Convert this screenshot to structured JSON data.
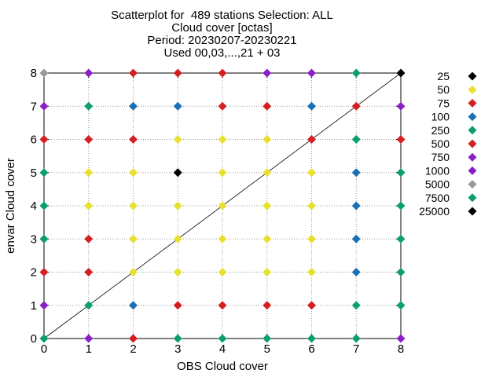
{
  "chart_data": {
    "type": "scatter",
    "title_lines": [
      "Scatterplot for  489 stations Selection: ALL",
      "Cloud cover [octas]",
      "Period: 20230207-20230221",
      "Used 00,03,...,21 + 03"
    ],
    "xlabel": "OBS Cloud cover",
    "ylabel": "envar Cloud cover",
    "xlim": [
      0,
      8
    ],
    "ylim": [
      0,
      8
    ],
    "xticks": [
      "0",
      "1",
      "2",
      "3",
      "4",
      "5",
      "6",
      "7",
      "8"
    ],
    "yticks": [
      "0",
      "1",
      "2",
      "3",
      "4",
      "5",
      "6",
      "7",
      "8"
    ],
    "grid": true,
    "diagonal_line": true,
    "legend_placement": "right",
    "legend": [
      {
        "label": "25",
        "color": "#000000"
      },
      {
        "label": "50",
        "color": "#e8e030"
      },
      {
        "label": "75",
        "color": "#d42020"
      },
      {
        "label": "100",
        "color": "#1a6fb5"
      },
      {
        "label": "250",
        "color": "#0a9e72"
      },
      {
        "label": "500",
        "color": "#d42020"
      },
      {
        "label": "750",
        "color": "#8a1fc8"
      },
      {
        "label": "1000",
        "color": "#8a1fc8"
      },
      {
        "label": "5000",
        "color": "#999999"
      },
      {
        "label": "7500",
        "color": "#0a9e72"
      },
      {
        "label": "25000",
        "color": "#000000"
      }
    ],
    "points": [
      {
        "x": 0,
        "y": 0,
        "color": "#0a9e72"
      },
      {
        "x": 1,
        "y": 0,
        "color": "#8a1fc8"
      },
      {
        "x": 2,
        "y": 0,
        "color": "#d42020"
      },
      {
        "x": 3,
        "y": 0,
        "color": "#0a9e72"
      },
      {
        "x": 4,
        "y": 0,
        "color": "#0a9e72"
      },
      {
        "x": 5,
        "y": 0,
        "color": "#0a9e72"
      },
      {
        "x": 6,
        "y": 0,
        "color": "#0a9e72"
      },
      {
        "x": 7,
        "y": 0,
        "color": "#0a9e72"
      },
      {
        "x": 8,
        "y": 0,
        "color": "#8a1fc8"
      },
      {
        "x": 0,
        "y": 1,
        "color": "#8a1fc8"
      },
      {
        "x": 1,
        "y": 1,
        "color": "#0a9e72"
      },
      {
        "x": 2,
        "y": 1,
        "color": "#1a6fb5"
      },
      {
        "x": 3,
        "y": 1,
        "color": "#d42020"
      },
      {
        "x": 4,
        "y": 1,
        "color": "#d42020"
      },
      {
        "x": 5,
        "y": 1,
        "color": "#d42020"
      },
      {
        "x": 6,
        "y": 1,
        "color": "#d42020"
      },
      {
        "x": 7,
        "y": 1,
        "color": "#0a9e72"
      },
      {
        "x": 8,
        "y": 1,
        "color": "#0a9e72"
      },
      {
        "x": 0,
        "y": 2,
        "color": "#d42020"
      },
      {
        "x": 1,
        "y": 2,
        "color": "#d42020"
      },
      {
        "x": 2,
        "y": 2,
        "color": "#e8e030"
      },
      {
        "x": 3,
        "y": 2,
        "color": "#e8e030"
      },
      {
        "x": 4,
        "y": 2,
        "color": "#e8e030"
      },
      {
        "x": 5,
        "y": 2,
        "color": "#e8e030"
      },
      {
        "x": 6,
        "y": 2,
        "color": "#e8e030"
      },
      {
        "x": 7,
        "y": 2,
        "color": "#1a6fb5"
      },
      {
        "x": 8,
        "y": 2,
        "color": "#0a9e72"
      },
      {
        "x": 0,
        "y": 3,
        "color": "#0a9e72"
      },
      {
        "x": 1,
        "y": 3,
        "color": "#d42020"
      },
      {
        "x": 2,
        "y": 3,
        "color": "#e8e030"
      },
      {
        "x": 3,
        "y": 3,
        "color": "#e8e030"
      },
      {
        "x": 4,
        "y": 3,
        "color": "#e8e030"
      },
      {
        "x": 5,
        "y": 3,
        "color": "#e8e030"
      },
      {
        "x": 6,
        "y": 3,
        "color": "#e8e030"
      },
      {
        "x": 7,
        "y": 3,
        "color": "#1a6fb5"
      },
      {
        "x": 8,
        "y": 3,
        "color": "#0a9e72"
      },
      {
        "x": 0,
        "y": 4,
        "color": "#0a9e72"
      },
      {
        "x": 1,
        "y": 4,
        "color": "#e8e030"
      },
      {
        "x": 2,
        "y": 4,
        "color": "#e8e030"
      },
      {
        "x": 3,
        "y": 4,
        "color": "#e8e030"
      },
      {
        "x": 4,
        "y": 4,
        "color": "#e8e030"
      },
      {
        "x": 5,
        "y": 4,
        "color": "#e8e030"
      },
      {
        "x": 6,
        "y": 4,
        "color": "#e8e030"
      },
      {
        "x": 7,
        "y": 4,
        "color": "#1a6fb5"
      },
      {
        "x": 8,
        "y": 4,
        "color": "#0a9e72"
      },
      {
        "x": 0,
        "y": 5,
        "color": "#0a9e72"
      },
      {
        "x": 1,
        "y": 5,
        "color": "#e8e030"
      },
      {
        "x": 2,
        "y": 5,
        "color": "#e8e030"
      },
      {
        "x": 3,
        "y": 5,
        "color": "#000000"
      },
      {
        "x": 4,
        "y": 5,
        "color": "#e8e030"
      },
      {
        "x": 5,
        "y": 5,
        "color": "#e8e030"
      },
      {
        "x": 6,
        "y": 5,
        "color": "#e8e030"
      },
      {
        "x": 7,
        "y": 5,
        "color": "#1a6fb5"
      },
      {
        "x": 8,
        "y": 5,
        "color": "#0a9e72"
      },
      {
        "x": 0,
        "y": 6,
        "color": "#d42020"
      },
      {
        "x": 1,
        "y": 6,
        "color": "#d42020"
      },
      {
        "x": 2,
        "y": 6,
        "color": "#d42020"
      },
      {
        "x": 3,
        "y": 6,
        "color": "#e8e030"
      },
      {
        "x": 4,
        "y": 6,
        "color": "#e8e030"
      },
      {
        "x": 5,
        "y": 6,
        "color": "#e8e030"
      },
      {
        "x": 6,
        "y": 6,
        "color": "#d42020"
      },
      {
        "x": 7,
        "y": 6,
        "color": "#0a9e72"
      },
      {
        "x": 8,
        "y": 6,
        "color": "#d42020"
      },
      {
        "x": 0,
        "y": 7,
        "color": "#8a1fc8"
      },
      {
        "x": 1,
        "y": 7,
        "color": "#0a9e72"
      },
      {
        "x": 2,
        "y": 7,
        "color": "#1a6fb5"
      },
      {
        "x": 3,
        "y": 7,
        "color": "#1a6fb5"
      },
      {
        "x": 4,
        "y": 7,
        "color": "#d42020"
      },
      {
        "x": 5,
        "y": 7,
        "color": "#d42020"
      },
      {
        "x": 6,
        "y": 7,
        "color": "#1a6fb5"
      },
      {
        "x": 7,
        "y": 7,
        "color": "#d42020"
      },
      {
        "x": 8,
        "y": 7,
        "color": "#8a1fc8"
      },
      {
        "x": 0,
        "y": 8,
        "color": "#999999"
      },
      {
        "x": 1,
        "y": 8,
        "color": "#8a1fc8"
      },
      {
        "x": 2,
        "y": 8,
        "color": "#d42020"
      },
      {
        "x": 3,
        "y": 8,
        "color": "#d42020"
      },
      {
        "x": 4,
        "y": 8,
        "color": "#d42020"
      },
      {
        "x": 5,
        "y": 8,
        "color": "#8a1fc8"
      },
      {
        "x": 6,
        "y": 8,
        "color": "#8a1fc8"
      },
      {
        "x": 7,
        "y": 8,
        "color": "#0a9e72"
      },
      {
        "x": 8,
        "y": 8,
        "color": "#000000"
      }
    ]
  }
}
